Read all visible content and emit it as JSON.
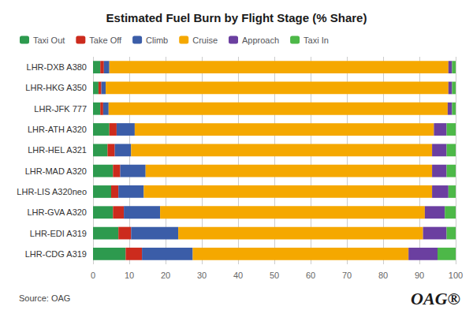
{
  "chart_data": {
    "type": "bar",
    "orientation": "horizontal",
    "stacked": true,
    "title": "Estimated Fuel Burn by Flight Stage (% Share)",
    "categories": [
      "LHR-DXB A380",
      "LHR-HKG A350",
      "LHR-JFK 777",
      "LHR-ATH A320",
      "LHR-HEL A321",
      "LHR-MAD A320",
      "LHR-LIS A320neo",
      "LHR-GVA A320",
      "LHR-EDI A319",
      "LHR-CDG A319"
    ],
    "series": [
      {
        "name": "Taxi Out",
        "color": "#2d9a4e",
        "values": [
          2.0,
          1.5,
          2.0,
          4.5,
          4.0,
          5.5,
          5.0,
          5.5,
          7.0,
          9.0
        ]
      },
      {
        "name": "Take Off",
        "color": "#cc2b1d",
        "values": [
          1.0,
          0.8,
          0.8,
          2.0,
          2.0,
          2.0,
          2.0,
          3.0,
          3.5,
          4.5
        ]
      },
      {
        "name": "Climb",
        "color": "#3b5da8",
        "values": [
          1.5,
          1.2,
          1.5,
          5.0,
          4.5,
          7.0,
          7.0,
          10.0,
          13.0,
          14.0
        ]
      },
      {
        "name": "Cruise",
        "color": "#f5a800",
        "values": [
          93.5,
          94.5,
          93.5,
          82.5,
          83.0,
          79.0,
          79.5,
          73.0,
          67.5,
          59.5
        ]
      },
      {
        "name": "Approach",
        "color": "#6b3fa0",
        "values": [
          1.0,
          1.0,
          1.2,
          3.5,
          4.0,
          4.0,
          4.5,
          5.5,
          6.5,
          8.0
        ]
      },
      {
        "name": "Taxi In",
        "color": "#4db848",
        "values": [
          1.0,
          1.0,
          1.0,
          2.5,
          2.5,
          2.5,
          2.0,
          3.0,
          2.5,
          5.0
        ]
      }
    ],
    "xlim": [
      0,
      100
    ],
    "xticks": [
      0,
      10,
      20,
      30,
      40,
      50,
      60,
      70,
      80,
      90,
      100
    ],
    "grid": true,
    "legend": "upper left",
    "annotations": [
      "Source: OAG",
      "OAG®"
    ]
  }
}
